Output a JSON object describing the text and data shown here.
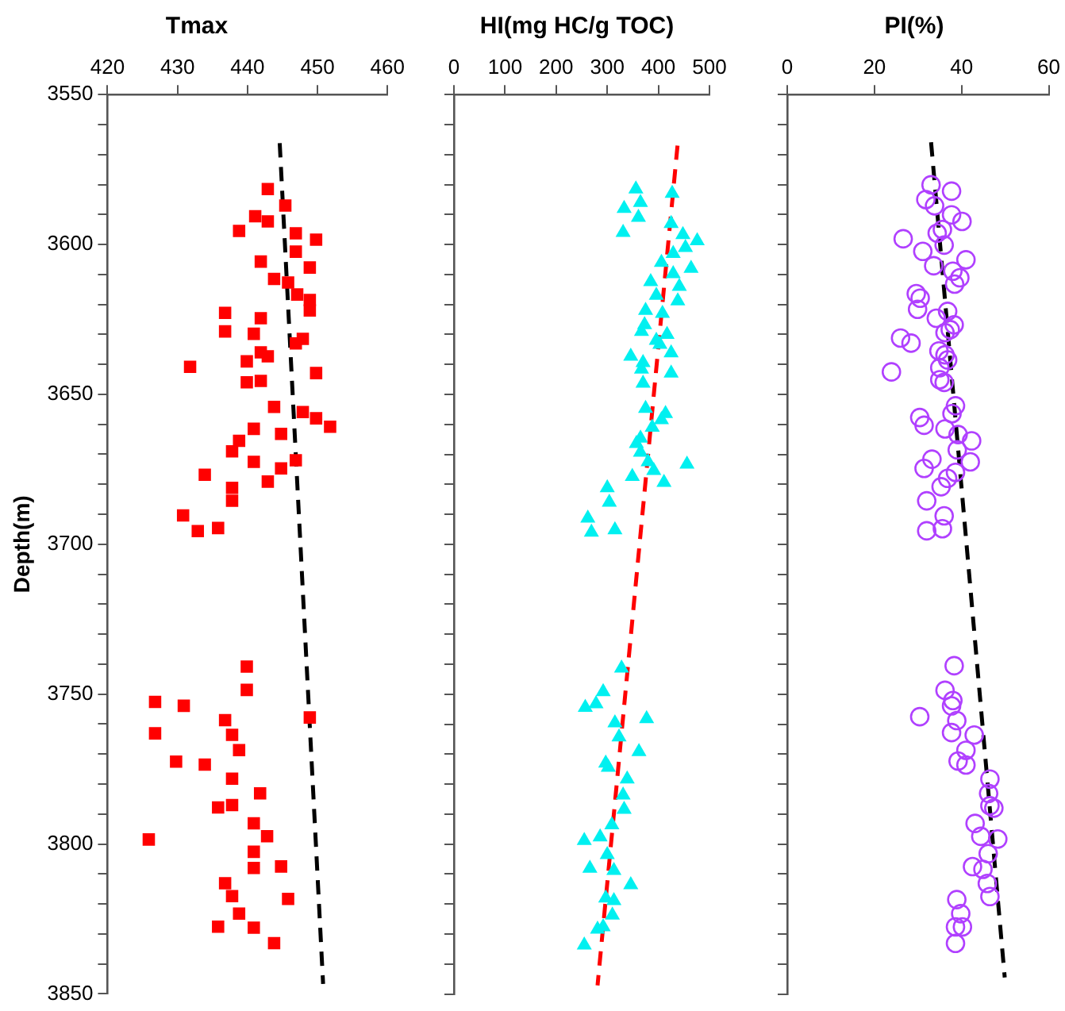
{
  "chart_data": [
    {
      "type": "scatter",
      "title": "Tmax",
      "ylabel": "Depth(m)",
      "xlim": [
        420,
        460
      ],
      "xticks": [
        420,
        430,
        440,
        450,
        460
      ],
      "ylim": [
        3850,
        3550
      ],
      "yticks": [
        3550,
        {
          "value": 3560,
          "label": null
        },
        {
          "value": 3570,
          "label": null
        },
        {
          "value": 3580,
          "label": null
        },
        {
          "value": 3590,
          "label": null
        },
        3600,
        {
          "value": 3610,
          "label": null
        },
        {
          "value": 3620,
          "label": null
        },
        {
          "value": 3630,
          "label": null
        },
        {
          "value": 3640,
          "label": null
        },
        3650,
        {
          "value": 3660,
          "label": null
        },
        {
          "value": 3670,
          "label": null
        },
        {
          "value": 3680,
          "label": null
        },
        {
          "value": 3690,
          "label": null
        },
        3700,
        {
          "value": 3710,
          "label": null
        },
        {
          "value": 3720,
          "label": null
        },
        {
          "value": 3730,
          "label": null
        },
        {
          "value": 3740,
          "label": null
        },
        3750,
        {
          "value": 3760,
          "label": null
        },
        {
          "value": 3770,
          "label": null
        },
        {
          "value": 3780,
          "label": null
        },
        {
          "value": 3790,
          "label": null
        },
        3800,
        {
          "value": 3810,
          "label": null
        },
        {
          "value": 3820,
          "label": null
        },
        {
          "value": 3830,
          "label": null
        },
        {
          "value": 3840,
          "label": null
        },
        3850
      ],
      "series": [
        {
          "color": "#ff0000",
          "marker": "square",
          "x": [
            442.9,
            445.4,
            441.1,
            442.9,
            438.8,
            446.9,
            449.8,
            446.9,
            441.9,
            448.9,
            443.8,
            445.8,
            447.1,
            448.9,
            448.9,
            436.8,
            441.9,
            436.8,
            440.9,
            447.9,
            446.9,
            441.9,
            442.9,
            439.9,
            431.8,
            449.8,
            439.9,
            441.9,
            443.8,
            447.9,
            449.8,
            451.8,
            440.9,
            444.8,
            438.8,
            437.8,
            440.9,
            446.9,
            444.8,
            433.9,
            442.9,
            437.8,
            437.8,
            430.8,
            432.9,
            435.8,
            439.9,
            439.9,
            426.8,
            430.9,
            448.9,
            436.8,
            426.8,
            437.8,
            438.8,
            429.8,
            433.9,
            437.8,
            441.8,
            435.8,
            437.8,
            440.9,
            442.8,
            425.9,
            440.9,
            440.9,
            444.8,
            436.8,
            437.8,
            445.8,
            438.8,
            435.8,
            440.9,
            443.8
          ],
          "values": [
            3581.5,
            3587,
            3590.6,
            3592.3,
            3595.5,
            3596.3,
            3598.4,
            3602.4,
            3605.7,
            3607.7,
            3611.5,
            3612.7,
            3616.7,
            3618.5,
            3622,
            3622.8,
            3624.6,
            3629,
            3629.8,
            3631.5,
            3633,
            3636,
            3637.3,
            3639,
            3640.8,
            3642.9,
            3646,
            3645.5,
            3654.2,
            3655.9,
            3658,
            3660.8,
            3661.5,
            3663.2,
            3665.5,
            3669,
            3672.5,
            3672,
            3674.7,
            3676.8,
            3679.1,
            3681.2,
            3685.5,
            3690.4,
            3695.6,
            3694.6,
            3740.8,
            3748.6,
            3752.6,
            3753.9,
            3757.8,
            3758.7,
            3763.1,
            3763.6,
            3768.7,
            3772.5,
            3773.5,
            3778.2,
            3783.1,
            3787.8,
            3787,
            3793.1,
            3797.4,
            3798.5,
            3802.6,
            3808,
            3807.5,
            3813.1,
            3817.4,
            3818.3,
            3823.2,
            3827.6,
            3827.9,
            3833.1
          ]
        },
        {
          "type": "line",
          "color": "#000000",
          "line_style": "dashed",
          "marker": "none",
          "x": [
            444.6,
            450.8
          ],
          "values": [
            3566.2,
            3846.7
          ]
        }
      ]
    },
    {
      "type": "scatter",
      "title": "HI(mg HC/g TOC)",
      "tick_labels": "x",
      "xlim": [
        0,
        500
      ],
      "xticks": [
        0,
        100,
        200,
        300,
        400,
        500
      ],
      "ylim": [
        3850,
        3550
      ],
      "yticks": [
        {
          "value": 3550,
          "label": null
        },
        {
          "value": 3560,
          "label": null
        },
        {
          "value": 3570,
          "label": null
        },
        {
          "value": 3580,
          "label": null
        },
        {
          "value": 3590,
          "label": null
        },
        {
          "value": 3600,
          "label": null
        },
        {
          "value": 3610,
          "label": null
        },
        {
          "value": 3620,
          "label": null
        },
        {
          "value": 3630,
          "label": null
        },
        {
          "value": 3640,
          "label": null
        },
        {
          "value": 3650,
          "label": null
        },
        {
          "value": 3660,
          "label": null
        },
        {
          "value": 3670,
          "label": null
        },
        {
          "value": 3680,
          "label": null
        },
        {
          "value": 3690,
          "label": null
        },
        {
          "value": 3700,
          "label": null
        },
        {
          "value": 3710,
          "label": null
        },
        {
          "value": 3720,
          "label": null
        },
        {
          "value": 3730,
          "label": null
        },
        {
          "value": 3740,
          "label": null
        },
        {
          "value": 3750,
          "label": null
        },
        {
          "value": 3760,
          "label": null
        },
        {
          "value": 3770,
          "label": null
        },
        {
          "value": 3780,
          "label": null
        },
        {
          "value": 3790,
          "label": null
        },
        {
          "value": 3800,
          "label": null
        },
        {
          "value": 3810,
          "label": null
        },
        {
          "value": 3820,
          "label": null
        },
        {
          "value": 3830,
          "label": null
        },
        {
          "value": 3840,
          "label": null
        },
        {
          "value": 3850,
          "label": null
        }
      ],
      "series": [
        {
          "color": "#00f0f0",
          "marker": "triangle",
          "x": [
            356,
            427,
            365,
            333,
            361,
            331,
            425,
            448,
            476,
            453,
            429,
            406,
            464,
            429,
            385,
            441,
            396,
            438,
            375,
            408,
            373,
            367,
            417,
            396,
            403,
            425,
            346,
            370,
            367,
            425,
            370,
            375,
            414,
            406,
            388,
            365,
            357,
            365,
            380,
            456,
            391,
            349,
            411,
            300,
            304,
            262,
            269,
            315,
            328,
            292,
            278,
            257,
            377,
            315,
            323,
            362,
            297,
            302,
            339,
            331,
            333,
            309,
            286,
            255,
            300,
            313,
            266,
            346,
            297,
            313,
            310,
            292,
            281,
            255
          ],
          "values": [
            3581.5,
            3583,
            3586,
            3588,
            3591,
            3596,
            3593,
            3596.7,
            3598.8,
            3601,
            3603,
            3606,
            3608,
            3609.8,
            3612.4,
            3614,
            3617,
            3618.8,
            3622,
            3623,
            3626.8,
            3629,
            3630,
            3632,
            3633.3,
            3636.2,
            3637.3,
            3639.4,
            3641.6,
            3642.9,
            3646.3,
            3654.7,
            3656.4,
            3658.5,
            3661,
            3664.6,
            3666.4,
            3669.3,
            3672.5,
            3673.3,
            3675.4,
            3677.4,
            3679.4,
            3681.2,
            3686,
            3691.3,
            3696,
            3695.2,
            3741.3,
            3749.2,
            3753.2,
            3754.4,
            3758.2,
            3759.6,
            3764.3,
            3769.2,
            3773,
            3774.4,
            3778.3,
            3783.7,
            3788.4,
            3793.6,
            3797.6,
            3798.8,
            3803.5,
            3808.8,
            3808.1,
            3813.6,
            3818,
            3818.9,
            3823.7,
            3827.6,
            3828.4,
            3833.7
          ]
        },
        {
          "type": "line",
          "color": "#ff0000",
          "line_style": "dashed",
          "marker": "none",
          "x": [
            437.5,
            281
          ],
          "values": [
            3567,
            3847.1
          ]
        }
      ]
    },
    {
      "type": "scatter",
      "title": "PI(%)",
      "tick_labels": "x",
      "xlim": [
        0,
        60
      ],
      "xticks": [
        0,
        20,
        40,
        60
      ],
      "ylim": [
        3850,
        3550
      ],
      "yticks": [
        {
          "value": 3550,
          "label": null
        },
        {
          "value": 3560,
          "label": null
        },
        {
          "value": 3570,
          "label": null
        },
        {
          "value": 3580,
          "label": null
        },
        {
          "value": 3590,
          "label": null
        },
        {
          "value": 3600,
          "label": null
        },
        {
          "value": 3610,
          "label": null
        },
        {
          "value": 3620,
          "label": null
        },
        {
          "value": 3630,
          "label": null
        },
        {
          "value": 3640,
          "label": null
        },
        {
          "value": 3650,
          "label": null
        },
        {
          "value": 3660,
          "label": null
        },
        {
          "value": 3670,
          "label": null
        },
        {
          "value": 3680,
          "label": null
        },
        {
          "value": 3690,
          "label": null
        },
        {
          "value": 3700,
          "label": null
        },
        {
          "value": 3710,
          "label": null
        },
        {
          "value": 3720,
          "label": null
        },
        {
          "value": 3730,
          "label": null
        },
        {
          "value": 3740,
          "label": null
        },
        {
          "value": 3750,
          "label": null
        },
        {
          "value": 3760,
          "label": null
        },
        {
          "value": 3770,
          "label": null
        },
        {
          "value": 3780,
          "label": null
        },
        {
          "value": 3790,
          "label": null
        },
        {
          "value": 3800,
          "label": null
        },
        {
          "value": 3810,
          "label": null
        },
        {
          "value": 3820,
          "label": null
        },
        {
          "value": 3830,
          "label": null
        },
        {
          "value": 3840,
          "label": null
        },
        {
          "value": 3850,
          "label": null
        }
      ],
      "series": [
        {
          "color": "#b040ff",
          "marker": "circle",
          "x": [
            33.0,
            37.7,
            31.8,
            33.8,
            37.7,
            40.1,
            35.6,
            34.4,
            36.0,
            26.6,
            31.1,
            41.0,
            33.6,
            38.0,
            39.6,
            38.4,
            29.6,
            30.5,
            29.9,
            36.8,
            34.2,
            38.3,
            37.4,
            36.2,
            26.0,
            28.4,
            34.8,
            36.2,
            36.8,
            35.0,
            23.9,
            35.0,
            36.0,
            38.6,
            37.8,
            30.4,
            31.4,
            36.2,
            39.2,
            42.3,
            39.0,
            42.0,
            33.2,
            31.4,
            38.6,
            36.8,
            35.3,
            32.0,
            36.0,
            35.6,
            32.0,
            38.3,
            36.2,
            38.0,
            37.7,
            30.4,
            38.9,
            37.7,
            42.9,
            41.0,
            39.2,
            41.0,
            46.5,
            46.2,
            46.5,
            47.4,
            43.1,
            44.4,
            48.3,
            46.1,
            42.5,
            44.9,
            45.9,
            46.5,
            38.9,
            39.8,
            38.6,
            40.2,
            38.6
          ],
          "values": [
            3580.1,
            3582.2,
            3585,
            3587.1,
            3590.1,
            3592.3,
            3595,
            3596.2,
            3600.2,
            3598.1,
            3602.3,
            3605.1,
            3607.1,
            3608.9,
            3611.1,
            3613.2,
            3616.4,
            3617.9,
            3621.6,
            3622.3,
            3624.6,
            3626.8,
            3628.4,
            3629.4,
            3631.2,
            3632.9,
            3635.5,
            3636.8,
            3638.5,
            3641.1,
            3642.5,
            3645.1,
            3646,
            3653.8,
            3656.4,
            3657.7,
            3660.3,
            3661.5,
            3663.4,
            3665.5,
            3668.5,
            3672.5,
            3671.6,
            3674.7,
            3676,
            3678,
            3680.8,
            3685.5,
            3690.5,
            3694.8,
            3695.5,
            3740.5,
            3748.7,
            3752.1,
            3753.9,
            3757.5,
            3758.8,
            3762.8,
            3763.6,
            3768.7,
            3772.3,
            3773.6,
            3778.3,
            3783.1,
            3787.2,
            3788,
            3793.1,
            3797.4,
            3798.3,
            3803.2,
            3807.5,
            3808.4,
            3813.1,
            3817.5,
            3818.5,
            3823.2,
            3827.6,
            3827.6,
            3833.1
          ]
        },
        {
          "type": "line",
          "color": "#000000",
          "line_style": "dashed",
          "marker": "none",
          "x": [
            33.0,
            49.9
          ],
          "values": [
            3565.9,
            3844.5
          ]
        }
      ]
    }
  ]
}
